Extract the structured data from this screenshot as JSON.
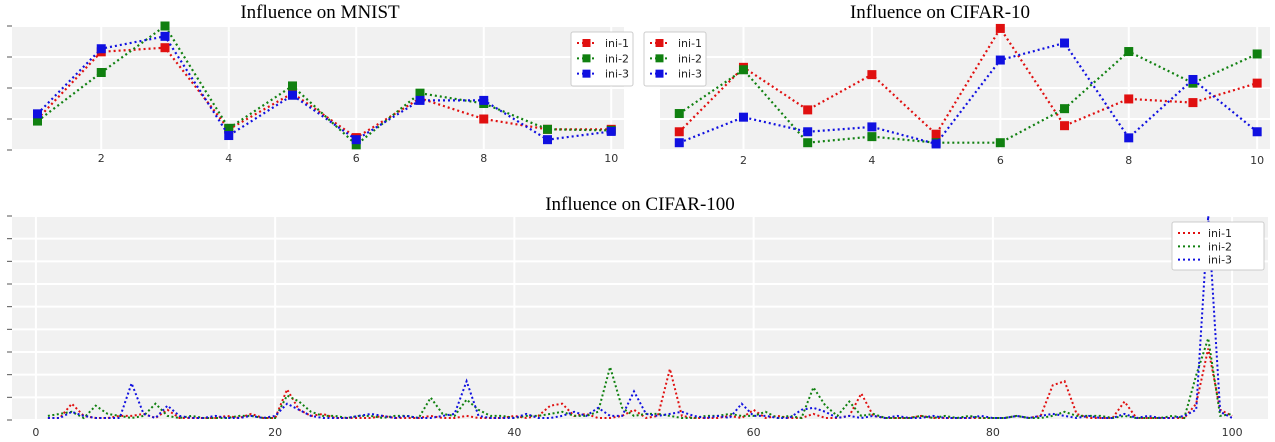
{
  "chart_data": [
    {
      "type": "line",
      "title": "Influence on MNIST",
      "x": [
        1,
        2,
        3,
        4,
        5,
        6,
        7,
        8,
        9,
        10
      ],
      "series": [
        {
          "name": "ini-1",
          "color": "#e01010",
          "values": [
            0.3,
            0.95,
            0.99,
            0.2,
            0.55,
            0.12,
            0.5,
            0.3,
            0.2,
            0.2
          ]
        },
        {
          "name": "ini-2",
          "color": "#108010",
          "values": [
            0.28,
            0.75,
            1.2,
            0.21,
            0.62,
            0.05,
            0.55,
            0.45,
            0.2,
            0.19
          ]
        },
        {
          "name": "ini-3",
          "color": "#1010e0",
          "values": [
            0.35,
            0.98,
            1.1,
            0.14,
            0.53,
            0.1,
            0.48,
            0.48,
            0.1,
            0.18
          ]
        }
      ],
      "xticks": [
        2,
        4,
        6,
        8,
        10
      ],
      "xlim": [
        0.6,
        10.2
      ],
      "ylim": [
        0,
        1.2
      ],
      "marker": "square",
      "linestyle": "dotted",
      "grid": true,
      "legend": "top-right"
    },
    {
      "type": "line",
      "title": "Influence on CIFAR-10",
      "x": [
        1,
        2,
        3,
        4,
        5,
        6,
        7,
        8,
        9,
        10
      ],
      "series": [
        {
          "name": "ini-1",
          "color": "#e01010",
          "values": [
            0.15,
            0.68,
            0.33,
            0.62,
            0.13,
            1.0,
            0.2,
            0.42,
            0.39,
            0.55
          ]
        },
        {
          "name": "ini-2",
          "color": "#108010",
          "values": [
            0.3,
            0.66,
            0.06,
            0.11,
            0.06,
            0.06,
            0.34,
            0.81,
            0.55,
            0.79
          ]
        },
        {
          "name": "ini-3",
          "color": "#1010e0",
          "values": [
            0.06,
            0.27,
            0.15,
            0.19,
            0.05,
            0.74,
            0.88,
            0.1,
            0.58,
            0.15
          ]
        }
      ],
      "xticks": [
        2,
        4,
        6,
        8,
        10
      ],
      "xlim": [
        0.7,
        10.2
      ],
      "ylim": [
        0,
        1.02
      ],
      "marker": "square",
      "linestyle": "dotted",
      "grid": true,
      "legend": "top-left"
    },
    {
      "type": "line",
      "title": "Influence on CIFAR-100",
      "x_start": 1,
      "series": [
        {
          "name": "ini-1",
          "color": "#e01010",
          "values": [
            0.01,
            0.01,
            0.08,
            0.02,
            0.01,
            0.01,
            0.02,
            0.02,
            0.03,
            0.01,
            0.05,
            0.01,
            0.01,
            0.01,
            0.01,
            0.02,
            0.01,
            0.03,
            0.01,
            0.01,
            0.15,
            0.05,
            0.02,
            0.03,
            0.01,
            0.01,
            0.01,
            0.01,
            0.02,
            0.01,
            0.01,
            0.01,
            0.02,
            0.01,
            0.01,
            0.02,
            0.01,
            0.01,
            0.01,
            0.02,
            0.01,
            0.02,
            0.07,
            0.08,
            0.02,
            0.03,
            0.01,
            0.01,
            0.02,
            0.05,
            0.01,
            0.02,
            0.25,
            0.02,
            0.01,
            0.01,
            0.01,
            0.02,
            0.01,
            0.05,
            0.01,
            0.02,
            0.01,
            0.01,
            0.03,
            0.01,
            0.01,
            0.02,
            0.13,
            0.02,
            0.01,
            0.01,
            0.01,
            0.02,
            0.01,
            0.01,
            0.01,
            0.01,
            0.01,
            0.01,
            0.01,
            0.02,
            0.01,
            0.02,
            0.17,
            0.19,
            0.03,
            0.01,
            0.01,
            0.01,
            0.09,
            0.01,
            0.01,
            0.01,
            0.01,
            0.01,
            0.08,
            0.35,
            0.05,
            0.02
          ]
        },
        {
          "name": "ini-2",
          "color": "#108010",
          "values": [
            0.02,
            0.03,
            0.04,
            0.01,
            0.07,
            0.03,
            0.02,
            0.01,
            0.02,
            0.08,
            0.02,
            0.01,
            0.02,
            0.01,
            0.01,
            0.01,
            0.02,
            0.02,
            0.01,
            0.01,
            0.12,
            0.09,
            0.04,
            0.02,
            0.02,
            0.01,
            0.02,
            0.02,
            0.01,
            0.02,
            0.02,
            0.01,
            0.11,
            0.03,
            0.02,
            0.1,
            0.05,
            0.02,
            0.02,
            0.01,
            0.02,
            0.02,
            0.03,
            0.04,
            0.02,
            0.02,
            0.04,
            0.26,
            0.06,
            0.02,
            0.03,
            0.03,
            0.02,
            0.01,
            0.01,
            0.02,
            0.02,
            0.03,
            0.02,
            0.02,
            0.04,
            0.01,
            0.02,
            0.01,
            0.16,
            0.07,
            0.02,
            0.09,
            0.02,
            0.03,
            0.01,
            0.01,
            0.01,
            0.02,
            0.01,
            0.02,
            0.01,
            0.02,
            0.01,
            0.01,
            0.01,
            0.02,
            0.01,
            0.01,
            0.02,
            0.04,
            0.02,
            0.02,
            0.02,
            0.01,
            0.02,
            0.01,
            0.01,
            0.01,
            0.02,
            0.01,
            0.22,
            0.4,
            0.02,
            0.03
          ]
        },
        {
          "name": "ini-3",
          "color": "#1010e0",
          "values": [
            0.01,
            0.01,
            0.04,
            0.02,
            0.01,
            0.01,
            0.01,
            0.18,
            0.03,
            0.01,
            0.07,
            0.02,
            0.01,
            0.01,
            0.02,
            0.01,
            0.01,
            0.02,
            0.01,
            0.02,
            0.08,
            0.05,
            0.02,
            0.01,
            0.01,
            0.01,
            0.02,
            0.03,
            0.02,
            0.01,
            0.02,
            0.01,
            0.01,
            0.02,
            0.03,
            0.19,
            0.02,
            0.01,
            0.01,
            0.01,
            0.03,
            0.01,
            0.01,
            0.02,
            0.04,
            0.02,
            0.06,
            0.02,
            0.02,
            0.14,
            0.03,
            0.02,
            0.03,
            0.04,
            0.02,
            0.01,
            0.02,
            0.01,
            0.08,
            0.02,
            0.02,
            0.01,
            0.01,
            0.05,
            0.06,
            0.04,
            0.01,
            0.02,
            0.01,
            0.02,
            0.01,
            0.02,
            0.01,
            0.01,
            0.02,
            0.01,
            0.01,
            0.01,
            0.02,
            0.01,
            0.01,
            0.02,
            0.01,
            0.02,
            0.03,
            0.02,
            0.01,
            0.02,
            0.01,
            0.01,
            0.03,
            0.01,
            0.02,
            0.01,
            0.01,
            0.02,
            0.05,
            1.0,
            0.04,
            0.01
          ]
        }
      ],
      "xticks": [
        0,
        20,
        40,
        60,
        80,
        100
      ],
      "xlim": [
        -2,
        103
      ],
      "ylim": [
        0,
        1.0
      ],
      "linestyle": "dotted",
      "grid": true,
      "legend": "top-right"
    }
  ]
}
